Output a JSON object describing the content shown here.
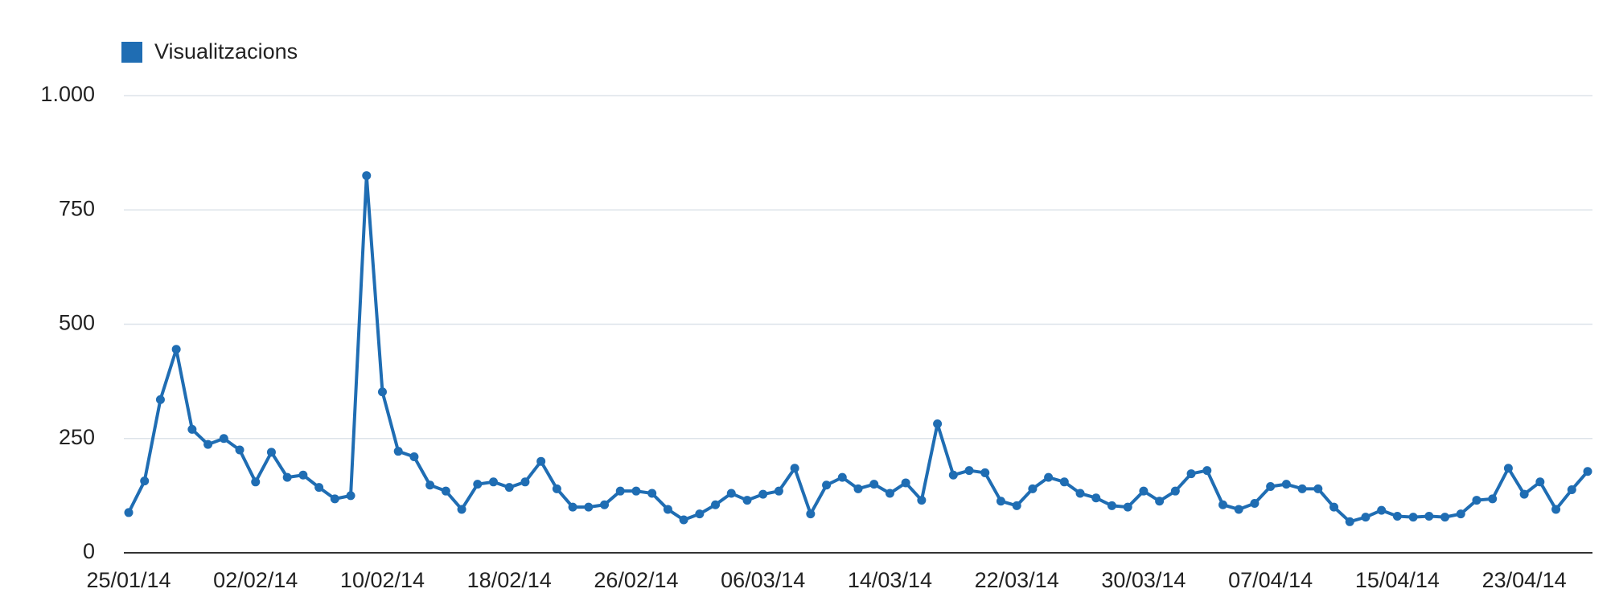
{
  "chart_data": {
    "type": "line",
    "categories": [
      "25/01/14",
      null,
      null,
      null,
      null,
      null,
      null,
      null,
      "02/02/14",
      null,
      null,
      null,
      null,
      null,
      null,
      null,
      "10/02/14",
      null,
      null,
      null,
      null,
      null,
      null,
      null,
      "18/02/14",
      null,
      null,
      null,
      null,
      null,
      null,
      null,
      "26/02/14",
      null,
      null,
      null,
      null,
      null,
      null,
      null,
      "06/03/14",
      null,
      null,
      null,
      null,
      null,
      null,
      null,
      "14/03/14",
      null,
      null,
      null,
      null,
      null,
      null,
      null,
      "22/03/14",
      null,
      null,
      null,
      null,
      null,
      null,
      null,
      "30/03/14",
      null,
      null,
      null,
      null,
      null,
      null,
      null,
      "07/04/14",
      null,
      null,
      null,
      null,
      null,
      null,
      null,
      "15/04/14",
      null,
      null,
      null,
      null,
      null,
      null,
      null,
      "23/04/14",
      null,
      null,
      null,
      null
    ],
    "series": [
      {
        "name": "Visualitzacions",
        "color": "#1f6db3",
        "values": [
          88,
          157,
          335,
          445,
          270,
          237,
          250,
          225,
          155,
          220,
          165,
          170,
          143,
          118,
          125,
          825,
          352,
          222,
          210,
          148,
          135,
          95,
          150,
          155,
          143,
          155,
          200,
          140,
          100,
          100,
          105,
          135,
          135,
          130,
          95,
          72,
          85,
          105,
          130,
          115,
          128,
          135,
          185,
          85,
          148,
          165,
          140,
          150,
          130,
          153,
          115,
          282,
          170,
          180,
          175,
          113,
          103,
          140,
          165,
          155,
          130,
          120,
          103,
          100,
          135,
          113,
          135,
          173,
          180,
          105,
          95,
          108,
          145,
          150,
          140,
          140,
          100,
          68,
          78,
          93,
          80,
          78,
          80,
          78,
          85,
          115,
          118,
          185,
          128,
          155,
          95,
          138,
          178
        ]
      }
    ],
    "ylim": [
      0,
      1000
    ],
    "yticks": [
      0,
      250,
      500,
      750,
      {
        "value": 1000,
        "label": "1.000"
      }
    ],
    "grid": true,
    "legend": "top-left"
  }
}
